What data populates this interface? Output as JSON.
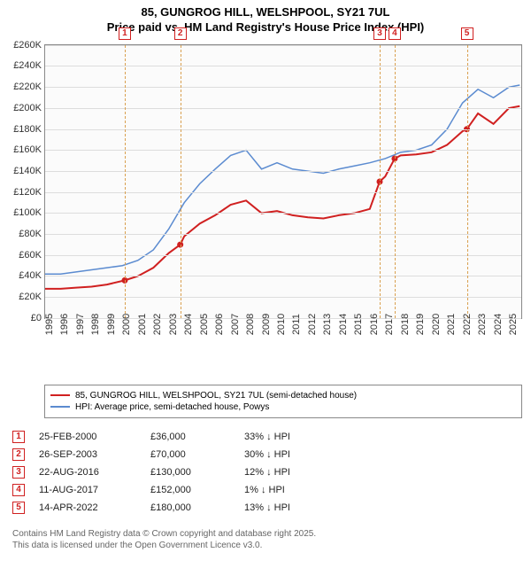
{
  "title_line1": "85, GUNGROG HILL, WELSHPOOL, SY21 7UL",
  "title_line2": "Price paid vs. HM Land Registry's House Price Index (HPI)",
  "chart": {
    "type": "line",
    "background_color": "#fbfbfb",
    "grid_color": "#dddddd",
    "axis_color": "#888888",
    "x_year_min": 1995,
    "x_year_max": 2025.8,
    "x_ticks": [
      1995,
      1996,
      1997,
      1998,
      1999,
      2000,
      2001,
      2002,
      2003,
      2004,
      2005,
      2006,
      2007,
      2008,
      2009,
      2010,
      2011,
      2012,
      2013,
      2014,
      2015,
      2016,
      2017,
      2018,
      2019,
      2020,
      2021,
      2022,
      2023,
      2024,
      2025
    ],
    "y_min": 0,
    "y_max": 260000,
    "y_tick_step": 20000,
    "y_tick_labels": [
      "£0",
      "£20K",
      "£40K",
      "£60K",
      "£80K",
      "£100K",
      "£120K",
      "£140K",
      "£160K",
      "£180K",
      "£200K",
      "£220K",
      "£240K",
      "£260K"
    ],
    "label_fontsize": 11,
    "series": [
      {
        "name": "85, GUNGROG HILL, WELSHPOOL, SY21 7UL (semi-detached house)",
        "color": "#d02020",
        "width": 2,
        "points": [
          [
            1995,
            28000
          ],
          [
            1996,
            28000
          ],
          [
            1997,
            29000
          ],
          [
            1998,
            30000
          ],
          [
            1999,
            32000
          ],
          [
            2000.15,
            36000
          ],
          [
            2001,
            40000
          ],
          [
            2002,
            48000
          ],
          [
            2003,
            62000
          ],
          [
            2003.74,
            70000
          ],
          [
            2004,
            78000
          ],
          [
            2005,
            90000
          ],
          [
            2006,
            98000
          ],
          [
            2007,
            108000
          ],
          [
            2008,
            112000
          ],
          [
            2009,
            100000
          ],
          [
            2010,
            102000
          ],
          [
            2011,
            98000
          ],
          [
            2012,
            96000
          ],
          [
            2013,
            95000
          ],
          [
            2014,
            98000
          ],
          [
            2015,
            100000
          ],
          [
            2016,
            104000
          ],
          [
            2016.64,
            130000
          ],
          [
            2017,
            135000
          ],
          [
            2017.61,
            152000
          ],
          [
            2018,
            155000
          ],
          [
            2019,
            156000
          ],
          [
            2020,
            158000
          ],
          [
            2021,
            165000
          ],
          [
            2022,
            178000
          ],
          [
            2022.28,
            180000
          ],
          [
            2023,
            195000
          ],
          [
            2024,
            185000
          ],
          [
            2025,
            200000
          ],
          [
            2025.7,
            202000
          ]
        ]
      },
      {
        "name": "HPI: Average price, semi-detached house, Powys",
        "color": "#5b8bd0",
        "width": 1.5,
        "points": [
          [
            1995,
            42000
          ],
          [
            1996,
            42000
          ],
          [
            1997,
            44000
          ],
          [
            1998,
            46000
          ],
          [
            1999,
            48000
          ],
          [
            2000,
            50000
          ],
          [
            2001,
            55000
          ],
          [
            2002,
            65000
          ],
          [
            2003,
            85000
          ],
          [
            2004,
            110000
          ],
          [
            2005,
            128000
          ],
          [
            2006,
            142000
          ],
          [
            2007,
            155000
          ],
          [
            2008,
            160000
          ],
          [
            2009,
            142000
          ],
          [
            2010,
            148000
          ],
          [
            2011,
            142000
          ],
          [
            2012,
            140000
          ],
          [
            2013,
            138000
          ],
          [
            2014,
            142000
          ],
          [
            2015,
            145000
          ],
          [
            2016,
            148000
          ],
          [
            2017,
            152000
          ],
          [
            2018,
            158000
          ],
          [
            2019,
            160000
          ],
          [
            2020,
            165000
          ],
          [
            2021,
            180000
          ],
          [
            2022,
            205000
          ],
          [
            2023,
            218000
          ],
          [
            2024,
            210000
          ],
          [
            2025,
            220000
          ],
          [
            2025.7,
            222000
          ]
        ]
      }
    ],
    "sale_markers": [
      {
        "n": 1,
        "year": 2000.15,
        "price": 36000
      },
      {
        "n": 2,
        "year": 2003.74,
        "price": 70000
      },
      {
        "n": 3,
        "year": 2016.64,
        "price": 130000
      },
      {
        "n": 4,
        "year": 2017.61,
        "price": 152000
      },
      {
        "n": 5,
        "year": 2022.28,
        "price": 180000
      }
    ],
    "callout_line_color": "#d9a050",
    "callout_box_border": "#d02020",
    "marker_dot_color": "#d02020"
  },
  "legend": {
    "items": [
      {
        "color": "#d02020",
        "label": "85, GUNGROG HILL, WELSHPOOL, SY21 7UL (semi-detached house)"
      },
      {
        "color": "#5b8bd0",
        "label": "HPI: Average price, semi-detached house, Powys"
      }
    ]
  },
  "sales_table": {
    "rows": [
      {
        "n": "1",
        "date": "25-FEB-2000",
        "price": "£36,000",
        "diff": "33% ↓ HPI"
      },
      {
        "n": "2",
        "date": "26-SEP-2003",
        "price": "£70,000",
        "diff": "30% ↓ HPI"
      },
      {
        "n": "3",
        "date": "22-AUG-2016",
        "price": "£130,000",
        "diff": "12% ↓ HPI"
      },
      {
        "n": "4",
        "date": "11-AUG-2017",
        "price": "£152,000",
        "diff": "1% ↓ HPI"
      },
      {
        "n": "5",
        "date": "14-APR-2022",
        "price": "£180,000",
        "diff": "13% ↓ HPI"
      }
    ]
  },
  "footer_line1": "Contains HM Land Registry data © Crown copyright and database right 2025.",
  "footer_line2": "This data is licensed under the Open Government Licence v3.0."
}
